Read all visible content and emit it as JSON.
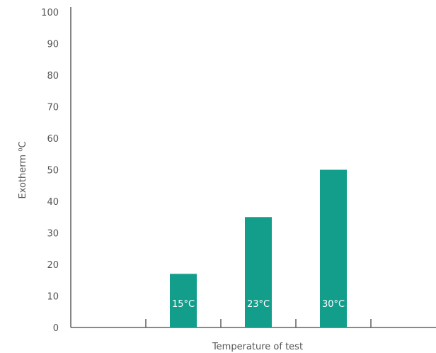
{
  "chart_data": {
    "type": "bar",
    "title": "",
    "xlabel": "Temperature of test",
    "ylabel": "Exotherm ⁰C",
    "ylim": [
      0,
      100
    ],
    "yticks": [
      0,
      10,
      20,
      30,
      40,
      50,
      60,
      70,
      80,
      90,
      100
    ],
    "categories": [
      "",
      "15°C",
      "23°C",
      "30°C",
      ""
    ],
    "values": [
      0,
      17,
      35,
      50,
      0
    ],
    "bar_color": "#139e8c",
    "axis_color": "#444444",
    "grid": false,
    "legend": "none"
  }
}
